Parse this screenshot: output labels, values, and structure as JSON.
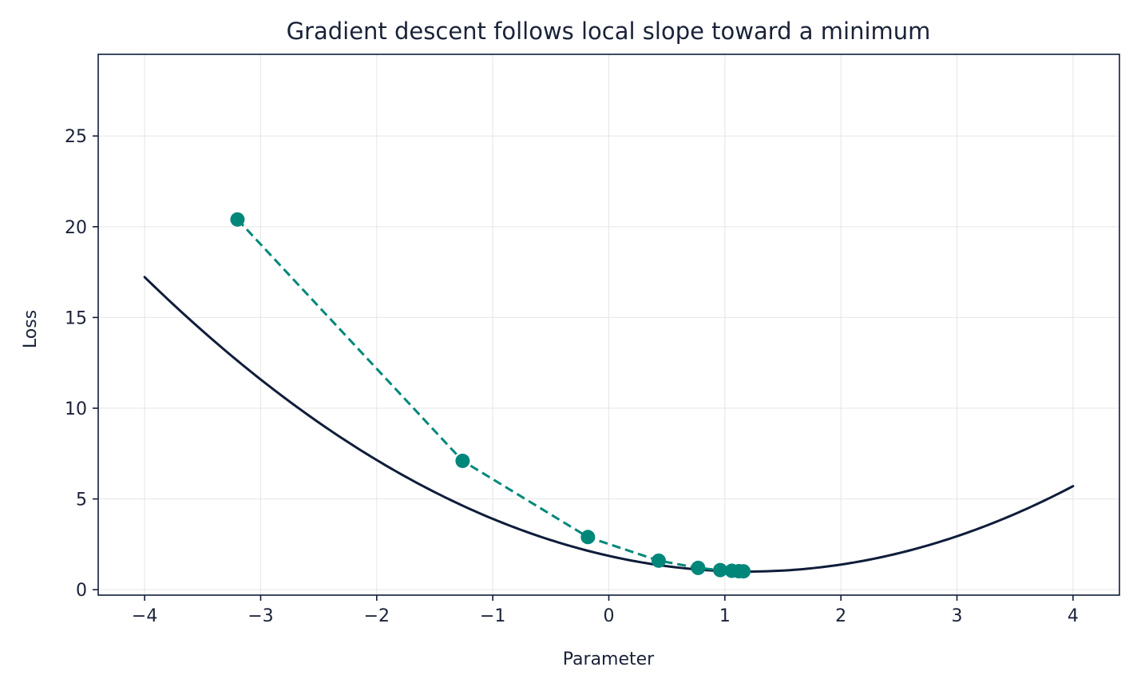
{
  "chart_data": {
    "type": "line",
    "title": "Gradient descent follows local slope toward a minimum",
    "xlabel": "Parameter",
    "ylabel": "Loss",
    "xlim": [
      -4.4,
      4.4
    ],
    "ylim": [
      -0.3,
      29.5
    ],
    "xticks": [
      -4,
      -3,
      -2,
      -1,
      0,
      1,
      2,
      3,
      4
    ],
    "yticks": [
      0,
      5,
      10,
      15,
      20,
      25
    ],
    "xtick_labels": [
      "−4",
      "−3",
      "−2",
      "−1",
      "0",
      "1",
      "2",
      "3",
      "4"
    ],
    "ytick_labels": [
      "0",
      "5",
      "10",
      "15",
      "20",
      "25"
    ],
    "grid": true,
    "series": [
      {
        "kind": "curve",
        "color": "#0f1d3a",
        "style": "solid",
        "function": "0.6*(x-1.2)^2 + 1",
        "x_range": [
          -4,
          4
        ]
      },
      {
        "kind": "path",
        "color": "#00877a",
        "style": "dashed",
        "markers": true,
        "points": [
          {
            "x": -3.2,
            "y": 20.4
          },
          {
            "x": -1.26,
            "y": 7.1
          },
          {
            "x": -0.18,
            "y": 2.9
          },
          {
            "x": 0.43,
            "y": 1.6
          },
          {
            "x": 0.77,
            "y": 1.2
          },
          {
            "x": 0.96,
            "y": 1.08
          },
          {
            "x": 1.06,
            "y": 1.04
          },
          {
            "x": 1.12,
            "y": 1.02
          },
          {
            "x": 1.16,
            "y": 1.01
          }
        ]
      }
    ]
  }
}
